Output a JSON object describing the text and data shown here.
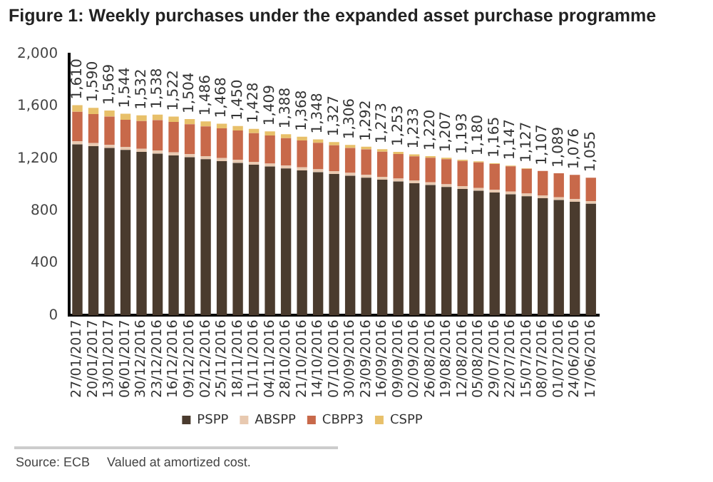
{
  "chart_data": {
    "type": "bar",
    "title": "Figure 1: Weekly purchases under the expanded asset purchase programme",
    "categories": [
      "27/01/2017",
      "20/01/2017",
      "13/01/2017",
      "06/01/2017",
      "30/12/2016",
      "23/12/2016",
      "16/12/2016",
      "09/12/2016",
      "02/12/2016",
      "25/11/2016",
      "18/11/2016",
      "11/11/2016",
      "04/11/2016",
      "28/10/2016",
      "21/10/2016",
      "14/10/2016",
      "07/10/2016",
      "30/09/2016",
      "23/09/2016",
      "16/09/2016",
      "09/09/2016",
      "02/09/2016",
      "26/08/2016",
      "19/08/2016",
      "12/08/2016",
      "05/08/2016",
      "29/07/2016",
      "22/07/2016",
      "15/07/2016",
      "08/07/2016",
      "01/07/2016",
      "24/06/2016",
      "17/06/2016"
    ],
    "stacked": true,
    "series": [
      {
        "name": "PSPP",
        "color": "#4a3b2e",
        "values": [
          1310,
          1296,
          1282,
          1267,
          1253,
          1239,
          1225,
          1211,
          1196,
          1182,
          1168,
          1154,
          1140,
          1125,
          1111,
          1097,
          1083,
          1069,
          1054,
          1040,
          1026,
          1012,
          998,
          983,
          969,
          955,
          941,
          927,
          912,
          898,
          884,
          870,
          855
        ]
      },
      {
        "name": "ABSPP",
        "color": "#e8c9b0",
        "values": [
          23,
          23,
          23,
          23,
          23,
          23,
          23,
          23,
          23,
          23,
          23,
          22,
          22,
          22,
          22,
          22,
          22,
          22,
          22,
          22,
          22,
          22,
          21,
          21,
          21,
          21,
          21,
          21,
          21,
          21,
          21,
          21,
          21
        ]
      },
      {
        "name": "CBPP3",
        "color": "#c8694a",
        "values": [
          226,
          222,
          217,
          208,
          212,
          233,
          233,
          230,
          229,
          227,
          225,
          219,
          216,
          211,
          207,
          203,
          198,
          192,
          195,
          192,
          188,
          184,
          188,
          192,
          193,
          196,
          197,
          194,
          190,
          188,
          184,
          185,
          179
        ]
      },
      {
        "name": "CSPP",
        "color": "#e8c06a",
        "values": [
          51,
          49,
          47,
          46,
          44,
          43,
          41,
          40,
          38,
          36,
          34,
          33,
          31,
          30,
          28,
          26,
          24,
          23,
          21,
          19,
          17,
          15,
          13,
          11,
          10,
          8,
          6,
          5,
          4,
          null,
          null,
          null,
          null
        ]
      }
    ],
    "totals": [
      "1,610",
      "1,590",
      "1,569",
      "1,544",
      "1,532",
      "1,538",
      "1,522",
      "1,504",
      "1,486",
      "1,468",
      "1,450",
      "1,428",
      "1,409",
      "1,388",
      "1,368",
      "1,348",
      "1,327",
      "1,306",
      "1,292",
      "1,273",
      "1,253",
      "1,233",
      "1,220",
      "1,207",
      "1,193",
      "1,180",
      "1,165",
      "1,147",
      "1,127",
      "1,107",
      "1,089",
      "1,076",
      "1,055"
    ],
    "ylim": [
      0,
      2000
    ],
    "yticks": [
      0,
      400,
      800,
      {
        "value": 1200,
        "label": "1,200"
      },
      {
        "value": 1600,
        "label": "1,600"
      },
      {
        "value": 2000,
        "label": "2,000"
      }
    ],
    "grid": false,
    "legend": "bottom",
    "annotations": [
      "Source: ECB",
      "Valued at amortized cost."
    ]
  }
}
